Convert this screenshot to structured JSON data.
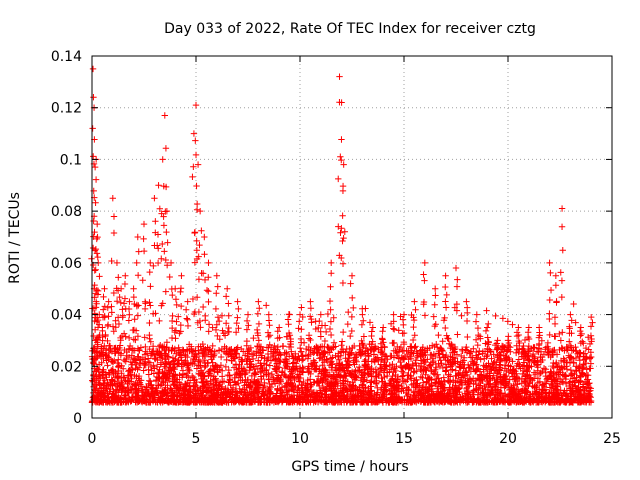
{
  "chart_data": {
    "type": "scatter",
    "title": "Day 033 of 2022, Rate Of TEC Index for receiver cztg",
    "xlabel": "GPS time / hours",
    "ylabel": "ROTI / TECUs",
    "xlim": [
      0,
      25
    ],
    "ylim": [
      0,
      0.14
    ],
    "x_ticks": [
      0,
      5,
      10,
      15,
      20,
      25
    ],
    "x_tick_labels": [
      "0",
      "5",
      "10",
      "15",
      "20",
      "25"
    ],
    "y_ticks": [
      0,
      0.02,
      0.04,
      0.06,
      0.08,
      0.1,
      0.12,
      0.14
    ],
    "y_tick_labels": [
      "0",
      "0.02",
      "0.04",
      "0.06",
      "0.08",
      "0.1",
      "0.12",
      "0.14"
    ],
    "grid": true,
    "marker": "+",
    "series_color": "#ff0000",
    "series": [
      {
        "name": "ROTI",
        "note": "Dense band of points 0.005-0.025 TECU/s over 0-24 h; sampled representative values below",
        "x": [
          0.05,
          0.1,
          0.15,
          0.2,
          0.25,
          0.3,
          0.1,
          0.2,
          0.35,
          0.5,
          0.6,
          0.8,
          1.0,
          1.2,
          1.4,
          1.6,
          1.8,
          2.0,
          2.2,
          2.5,
          2.8,
          3.0,
          3.2,
          3.4,
          3.5,
          3.6,
          3.8,
          4.0,
          4.3,
          4.6,
          4.9,
          5.0,
          5.1,
          5.2,
          5.4,
          5.6,
          6.0,
          6.5,
          7.0,
          7.5,
          8.0,
          8.5,
          9.0,
          9.5,
          10.0,
          10.5,
          11.0,
          11.5,
          11.9,
          12.0,
          12.1,
          12.5,
          13.0,
          13.5,
          14.0,
          14.5,
          15.0,
          15.5,
          16.0,
          16.5,
          17.0,
          17.5,
          18.0,
          18.5,
          19.0,
          19.5,
          20.0,
          20.5,
          21.0,
          21.5,
          22.0,
          22.3,
          22.6,
          23.0,
          23.5,
          24.0
        ],
        "y": [
          0.135,
          0.12,
          0.097,
          0.1,
          0.075,
          0.06,
          0.05,
          0.045,
          0.04,
          0.035,
          0.05,
          0.045,
          0.085,
          0.06,
          0.05,
          0.055,
          0.045,
          0.05,
          0.07,
          0.075,
          0.06,
          0.085,
          0.09,
          0.1,
          0.117,
          0.08,
          0.06,
          0.05,
          0.055,
          0.045,
          0.11,
          0.121,
          0.098,
          0.08,
          0.07,
          0.06,
          0.055,
          0.05,
          0.045,
          0.04,
          0.045,
          0.04,
          0.035,
          0.04,
          0.04,
          0.045,
          0.04,
          0.06,
          0.132,
          0.122,
          0.098,
          0.055,
          0.04,
          0.035,
          0.035,
          0.04,
          0.04,
          0.045,
          0.06,
          0.05,
          0.055,
          0.058,
          0.045,
          0.04,
          0.035,
          0.03,
          0.03,
          0.035,
          0.035,
          0.035,
          0.06,
          0.055,
          0.081,
          0.04,
          0.035,
          0.039
        ]
      }
    ]
  }
}
